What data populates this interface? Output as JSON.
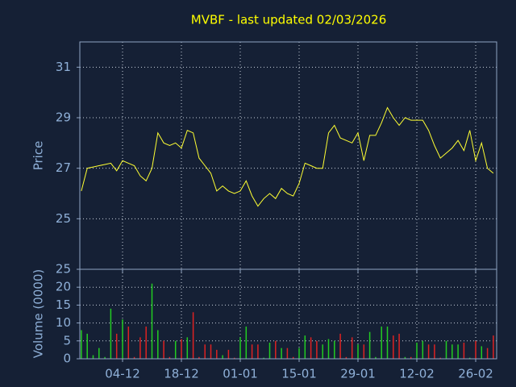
{
  "chart_data": [
    {
      "type": "line",
      "title": "MVBF - last updated 02/03/2026",
      "ylabel": "Price",
      "color": "#ffff33",
      "grid": true,
      "ylim": [
        23,
        32
      ],
      "yticks": [
        25,
        27,
        29,
        31
      ],
      "values": [
        26.1,
        27.0,
        27.05,
        27.1,
        27.15,
        27.2,
        26.9,
        27.3,
        27.2,
        27.1,
        26.7,
        26.5,
        27.0,
        28.4,
        28.0,
        27.9,
        28.0,
        27.8,
        28.5,
        28.4,
        27.4,
        27.1,
        26.8,
        26.1,
        26.3,
        26.1,
        26.0,
        26.1,
        26.5,
        25.9,
        25.5,
        25.8,
        26.0,
        25.8,
        26.2,
        26.0,
        25.9,
        26.4,
        27.2,
        27.1,
        27.0,
        27.0,
        28.4,
        28.7,
        28.2,
        28.1,
        28.0,
        28.4,
        27.3,
        28.3,
        28.3,
        28.8,
        29.4,
        29.0,
        28.7,
        29.0,
        28.9,
        28.9,
        28.9,
        28.5,
        27.9,
        27.4,
        27.6,
        27.8,
        28.1,
        27.7,
        28.5,
        27.3,
        28.0,
        27.0,
        26.8
      ]
    },
    {
      "type": "bar",
      "ylabel": "Volume (0000)",
      "up_color": "#22cc22",
      "down_color": "#dd2222",
      "grid": true,
      "ylim": [
        0,
        25
      ],
      "yticks": [
        0,
        5,
        10,
        15,
        20,
        25
      ],
      "categories": [
        null,
        null,
        null,
        null,
        null,
        null,
        null,
        "04-12",
        null,
        null,
        null,
        null,
        null,
        null,
        null,
        null,
        null,
        "18-12",
        null,
        null,
        null,
        null,
        null,
        null,
        null,
        null,
        null,
        "01-01",
        null,
        null,
        null,
        null,
        null,
        null,
        null,
        null,
        null,
        "15-01",
        null,
        null,
        null,
        null,
        null,
        null,
        null,
        null,
        null,
        "29-01",
        null,
        null,
        null,
        null,
        null,
        null,
        null,
        null,
        null,
        "12-02",
        null,
        null,
        null,
        null,
        null,
        null,
        null,
        null,
        null,
        "26-02",
        null,
        null,
        null
      ],
      "values": [
        8,
        7,
        1,
        3,
        0.5,
        14,
        7,
        11,
        9,
        0.5,
        6,
        9,
        21,
        8,
        5,
        0.5,
        5,
        5.5,
        6,
        13,
        0.5,
        4,
        4,
        2.5,
        1,
        2.5,
        0.3,
        6,
        9,
        4,
        4,
        0.3,
        4.5,
        5,
        3,
        3,
        0.5,
        3,
        6.5,
        6,
        5,
        4,
        5.5,
        5,
        7,
        0.5,
        6,
        4,
        4,
        7.5,
        0.5,
        9,
        9,
        6.5,
        7,
        0.5,
        0.5,
        4.5,
        5,
        4,
        4,
        0.3,
        5,
        4,
        4,
        4.5,
        0.3,
        5,
        3.5,
        3,
        6.5
      ]
    }
  ]
}
